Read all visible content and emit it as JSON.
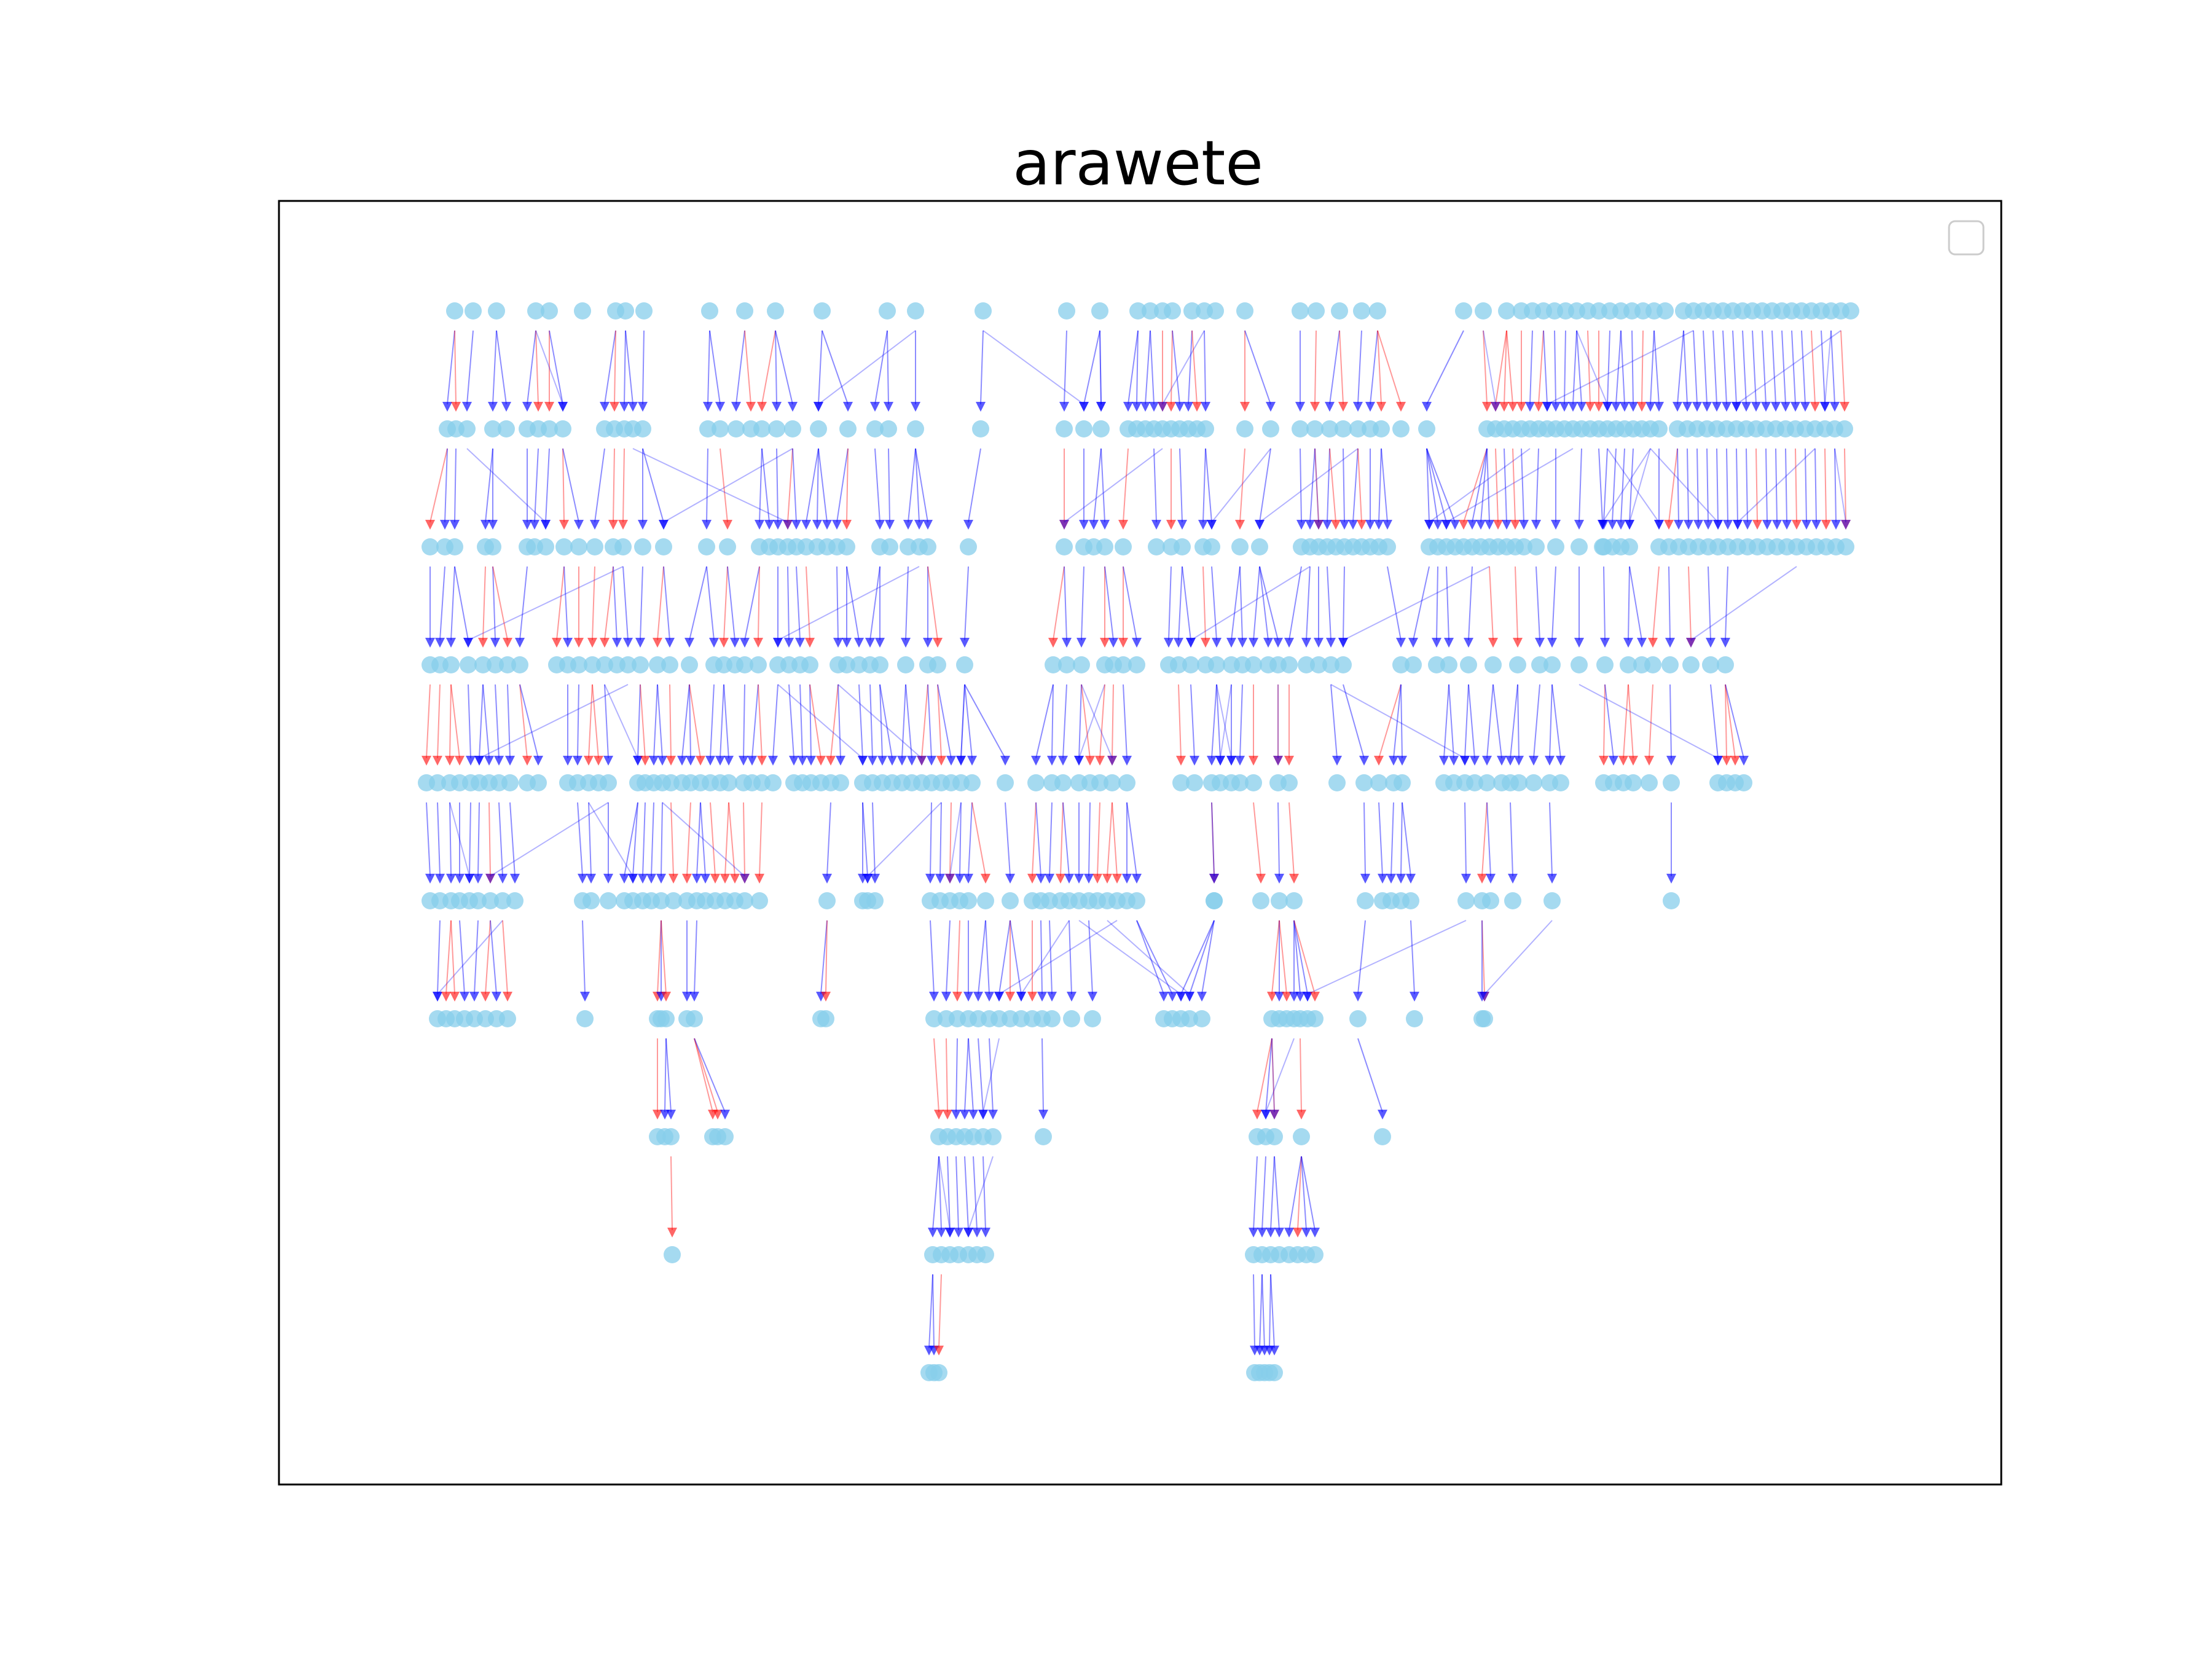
{
  "figure": {
    "title": "arawete"
  },
  "legend": {
    "placement": "top-right",
    "entries": []
  },
  "colors": {
    "node": "#87ceeb",
    "edge_primary": "#0000ff",
    "edge_secondary": "#ff0000",
    "frame": "#000000",
    "legend_border": "#cccccc"
  },
  "diagram": {
    "type": "layered-directed-graph",
    "layer_count": 10,
    "node_shape": "circle",
    "edge_style": "straight arrows pointing down to next layer"
  }
}
